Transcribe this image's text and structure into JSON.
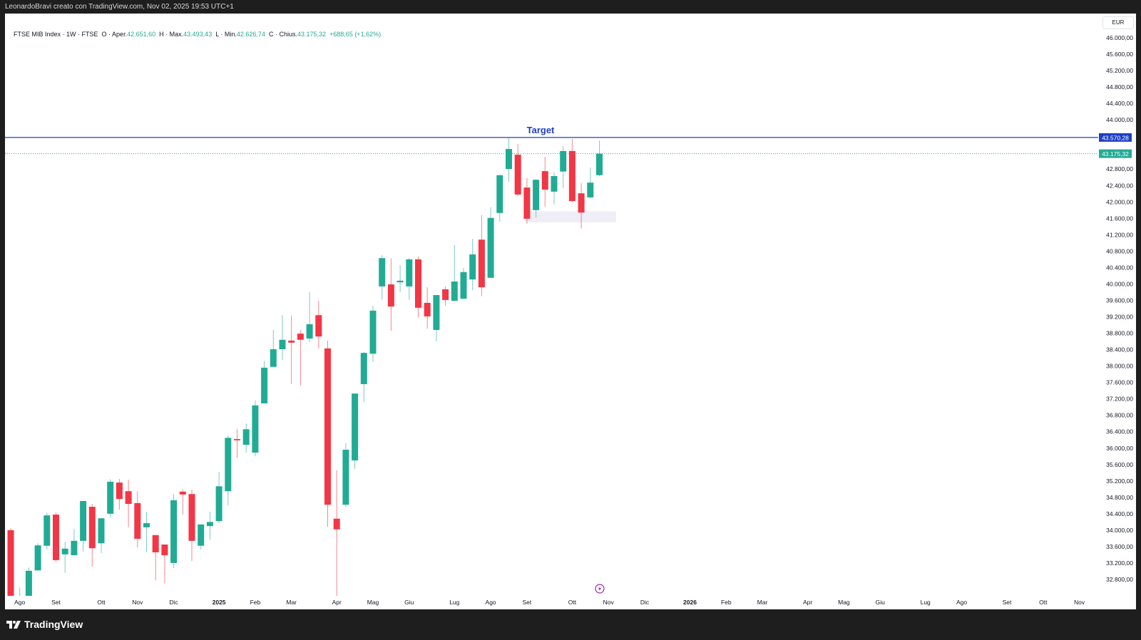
{
  "topbar": {
    "text": "LeonardoBravi creato con TradingView.com, Nov 02, 2025 19:53 UTC+1"
  },
  "legend": {
    "symbol": "FTSE MIB Index · 1W · FTSE",
    "open_label": "O · Aper.",
    "open": "42.651,60",
    "high_label": "H · Max.",
    "high": "43.493,43",
    "low_label": "L · Min.",
    "low": "42.626,74",
    "close_label": "C · Chius.",
    "close": "43.175,32",
    "change": "+688,65 (+1,62%)"
  },
  "currency": "EUR",
  "brand": "TradingView",
  "colors": {
    "up": "#22ab94",
    "down": "#f23645",
    "target": "#1e3fc4",
    "zone": "#efedf6",
    "alert_icon": "#9c27b0"
  },
  "chart_data": {
    "type": "candlestick",
    "interval": "1W",
    "ylim": [
      32400,
      46200
    ],
    "y_ticks": [
      "46.000,00",
      "45.600,00",
      "45.200,00",
      "44.800,00",
      "44.400,00",
      "44.000,00",
      "43.600,00",
      "43.200,00",
      "42.800,00",
      "42.400,00",
      "42.000,00",
      "41.600,00",
      "41.200,00",
      "40.800,00",
      "40.400,00",
      "40.000,00",
      "39.600,00",
      "39.200,00",
      "38.800,00",
      "38.400,00",
      "38.000,00",
      "37.600,00",
      "37.200,00",
      "36.800,00",
      "36.400,00",
      "36.000,00",
      "35.600,00",
      "35.200,00",
      "34.800,00",
      "34.400,00",
      "34.000,00",
      "33.600,00",
      "33.200,00",
      "32.800,00"
    ],
    "y_tick_values": [
      46000,
      45600,
      45200,
      44800,
      44400,
      44000,
      43600,
      43200,
      42800,
      42400,
      42000,
      41600,
      41200,
      40800,
      40400,
      40000,
      39600,
      39200,
      38800,
      38400,
      38000,
      37600,
      37200,
      36800,
      36400,
      36000,
      35600,
      35200,
      34800,
      34400,
      34000,
      33600,
      33200,
      32800
    ],
    "x_labels": [
      {
        "label": "Ago",
        "date": "2024-08-05"
      },
      {
        "label": "Set",
        "date": "2024-09-02"
      },
      {
        "label": "Ott",
        "date": "2024-10-07"
      },
      {
        "label": "Nov",
        "date": "2024-11-04"
      },
      {
        "label": "Dic",
        "date": "2024-12-02"
      },
      {
        "label": "2025",
        "date": "2025-01-06",
        "bold": true
      },
      {
        "label": "Feb",
        "date": "2025-02-03"
      },
      {
        "label": "Mar",
        "date": "2025-03-03"
      },
      {
        "label": "Apr",
        "date": "2025-04-07"
      },
      {
        "label": "Mag",
        "date": "2025-05-05"
      },
      {
        "label": "Giu",
        "date": "2025-06-02"
      },
      {
        "label": "Lug",
        "date": "2025-07-07"
      },
      {
        "label": "Ago",
        "date": "2025-08-04"
      },
      {
        "label": "Set",
        "date": "2025-09-01"
      },
      {
        "label": "Ott",
        "date": "2025-10-06"
      },
      {
        "label": "Nov",
        "date": "2025-11-03"
      },
      {
        "label": "Dic",
        "date": "2025-12-01"
      },
      {
        "label": "2026",
        "date": "2026-01-05",
        "bold": true
      },
      {
        "label": "Feb",
        "date": "2026-02-02"
      },
      {
        "label": "Mar",
        "date": "2026-03-02"
      },
      {
        "label": "Apr",
        "date": "2026-04-06"
      },
      {
        "label": "Mag",
        "date": "2026-05-04"
      },
      {
        "label": "Giu",
        "date": "2026-06-01"
      },
      {
        "label": "Lug",
        "date": "2026-07-06"
      },
      {
        "label": "Ago",
        "date": "2026-08-03"
      },
      {
        "label": "Set",
        "date": "2026-09-07"
      },
      {
        "label": "Ott",
        "date": "2026-10-05"
      },
      {
        "label": "Nov",
        "date": "2026-11-02"
      }
    ],
    "candles_columns": [
      "date",
      "open",
      "high",
      "low",
      "close"
    ],
    "candles": [
      [
        "2024-07-29",
        34000,
        34050,
        32300,
        32400
      ],
      [
        "2024-08-05",
        32200,
        32600,
        30700,
        32380
      ],
      [
        "2024-08-12",
        32400,
        33090,
        32350,
        33010
      ],
      [
        "2024-08-19",
        33020,
        33680,
        33010,
        33630
      ],
      [
        "2024-08-26",
        33620,
        34430,
        33530,
        34360
      ],
      [
        "2024-09-02",
        34380,
        34430,
        33230,
        33270
      ],
      [
        "2024-09-09",
        33410,
        33720,
        32960,
        33550
      ],
      [
        "2024-09-16",
        33390,
        34030,
        33390,
        33740
      ],
      [
        "2024-09-23",
        33740,
        34710,
        33480,
        34710
      ],
      [
        "2024-09-30",
        34570,
        34640,
        33110,
        33560
      ],
      [
        "2024-10-07",
        33680,
        34290,
        33440,
        34290
      ],
      [
        "2024-10-14",
        34400,
        35240,
        34310,
        35180
      ],
      [
        "2024-10-21",
        35160,
        35250,
        34500,
        34760
      ],
      [
        "2024-10-28",
        34950,
        35230,
        34070,
        34640
      ],
      [
        "2024-11-04",
        34660,
        34950,
        33580,
        33790
      ],
      [
        "2024-11-11",
        34070,
        34450,
        33460,
        34170
      ],
      [
        "2024-11-18",
        33880,
        33880,
        32780,
        33460
      ],
      [
        "2024-11-25",
        33650,
        33650,
        32700,
        33390
      ],
      [
        "2024-12-02",
        33200,
        34880,
        33080,
        34730
      ],
      [
        "2024-12-09",
        34940,
        34990,
        34380,
        34870
      ],
      [
        "2024-12-16",
        34880,
        34990,
        33250,
        33740
      ],
      [
        "2024-12-23",
        33620,
        34140,
        33530,
        34140
      ],
      [
        "2024-12-30",
        34100,
        34450,
        33770,
        34200
      ],
      [
        "2025-01-06",
        34220,
        35420,
        34170,
        35070
      ],
      [
        "2025-01-13",
        34950,
        36310,
        34600,
        36250
      ],
      [
        "2025-01-20",
        36220,
        36460,
        35770,
        36190
      ],
      [
        "2025-01-27",
        36080,
        36600,
        35890,
        36460
      ],
      [
        "2025-02-03",
        35890,
        37160,
        35800,
        37040
      ],
      [
        "2025-02-10",
        37090,
        38130,
        37090,
        37960
      ],
      [
        "2025-02-17",
        37980,
        38880,
        37980,
        38410
      ],
      [
        "2025-02-24",
        38410,
        39240,
        38150,
        38640
      ],
      [
        "2025-03-03",
        38620,
        39230,
        37560,
        38570
      ],
      [
        "2025-03-10",
        38790,
        38880,
        37520,
        38640
      ],
      [
        "2025-03-17",
        38670,
        39800,
        38580,
        39020
      ],
      [
        "2025-03-24",
        39240,
        39590,
        38430,
        38720
      ],
      [
        "2025-03-31",
        38430,
        38620,
        34080,
        34620
      ],
      [
        "2025-04-07",
        34280,
        35460,
        32000,
        34020
      ],
      [
        "2025-04-14",
        34620,
        36120,
        34570,
        35960
      ],
      [
        "2025-04-21",
        35700,
        37330,
        35490,
        37330
      ],
      [
        "2025-04-28",
        37560,
        38340,
        37120,
        38320
      ],
      [
        "2025-05-05",
        38300,
        39470,
        38100,
        39350
      ],
      [
        "2025-05-12",
        39940,
        40700,
        39620,
        40630
      ],
      [
        "2025-05-19",
        39990,
        40620,
        38860,
        39450
      ],
      [
        "2025-05-26",
        40040,
        40460,
        39800,
        40080
      ],
      [
        "2025-06-02",
        39940,
        40630,
        39610,
        40600
      ],
      [
        "2025-06-09",
        40600,
        40670,
        39190,
        39420
      ],
      [
        "2025-06-16",
        39540,
        39920,
        38910,
        39210
      ],
      [
        "2025-06-23",
        38880,
        39730,
        38600,
        39730
      ],
      [
        "2025-06-30",
        39870,
        39940,
        39470,
        39610
      ],
      [
        "2025-07-07",
        39590,
        40950,
        39590,
        40060
      ],
      [
        "2025-07-14",
        39640,
        40390,
        39640,
        40290
      ],
      [
        "2025-07-21",
        40110,
        41100,
        39850,
        40720
      ],
      [
        "2025-07-28",
        41080,
        41680,
        39700,
        39920
      ],
      [
        "2025-08-04",
        40150,
        41870,
        40150,
        41610
      ],
      [
        "2025-08-11",
        41730,
        42670,
        41520,
        42650
      ],
      [
        "2025-08-18",
        42800,
        43550,
        42490,
        43290
      ],
      [
        "2025-08-25",
        43150,
        43410,
        42140,
        42180
      ],
      [
        "2025-09-01",
        42350,
        42580,
        41470,
        41590
      ],
      [
        "2025-09-08",
        41800,
        42550,
        41620,
        42540
      ],
      [
        "2025-09-15",
        42750,
        43100,
        41880,
        42300
      ],
      [
        "2025-09-22",
        42250,
        42720,
        41940,
        42630
      ],
      [
        "2025-09-29",
        42740,
        43360,
        42340,
        43240
      ],
      [
        "2025-10-06",
        43240,
        43530,
        42000,
        42020
      ],
      [
        "2025-10-13",
        42210,
        42460,
        41350,
        41740
      ],
      [
        "2025-10-20",
        42110,
        42840,
        42080,
        42470
      ],
      [
        "2025-10-27",
        42651.6,
        43493.43,
        42626.74,
        43175.32
      ]
    ],
    "annotations": [
      {
        "type": "horizontal_line",
        "label": "Target",
        "value": 43570.28,
        "value_label": "43.570,28"
      },
      {
        "type": "last_price_line",
        "value": 43175.32,
        "value_label": "43.175,32"
      },
      {
        "type": "zone",
        "from_date": "2025-09-01",
        "to_date": "2025-11-10",
        "low": 41500,
        "high": 41770
      }
    ]
  }
}
